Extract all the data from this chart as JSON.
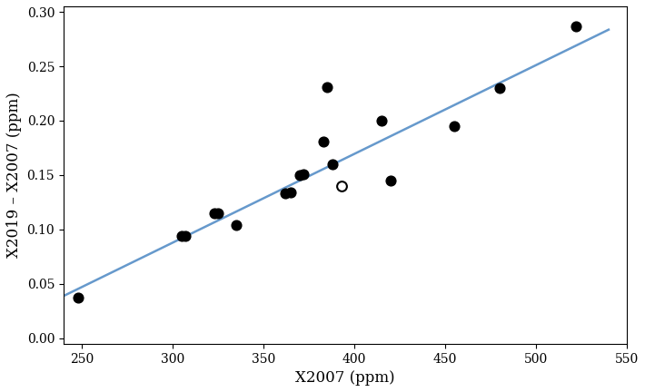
{
  "scatter_filled_x": [
    248,
    305,
    307,
    323,
    325,
    335,
    362,
    365,
    370,
    372,
    383,
    385,
    388,
    415,
    420,
    455,
    480,
    522
  ],
  "scatter_filled_y": [
    0.037,
    0.094,
    0.094,
    0.115,
    0.115,
    0.104,
    0.133,
    0.134,
    0.15,
    0.151,
    0.181,
    0.231,
    0.16,
    0.2,
    0.145,
    0.195,
    0.23,
    0.287
  ],
  "scatter_open_x": [
    393
  ],
  "scatter_open_y": [
    0.14
  ],
  "line_x": [
    240,
    540
  ],
  "line_slope": 0.000816,
  "line_intercept": -0.157,
  "xlabel": "X2007 (ppm)",
  "ylabel": "X2019 – X2007 (ppm)",
  "xlim": [
    240,
    550
  ],
  "ylim": [
    -0.005,
    0.305
  ],
  "xticks": [
    250,
    300,
    350,
    400,
    450,
    500,
    550
  ],
  "yticks": [
    0.0,
    0.05,
    0.1,
    0.15,
    0.2,
    0.25,
    0.3
  ],
  "line_color": "#6699cc",
  "filled_marker_color": "black",
  "open_marker_color": "white",
  "open_marker_edge_color": "black",
  "marker_size": 60,
  "line_width": 1.8,
  "font_family": "serif",
  "fontsize_labels": 12,
  "fontsize_ticks": 10
}
